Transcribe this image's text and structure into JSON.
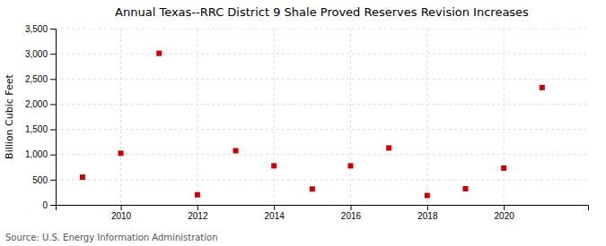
{
  "chart_data": {
    "type": "scatter",
    "title": "Annual Texas--RRC District 9 Shale Proved Reserves Revision Increases",
    "ylabel": "Billion Cubic Feet",
    "source": "Source: U.S. Energy Information Administration",
    "x": [
      2009,
      2010,
      2011,
      2012,
      2013,
      2014,
      2015,
      2016,
      2017,
      2018,
      2019,
      2020,
      2021
    ],
    "values": [
      550,
      1025,
      3010,
      200,
      1075,
      775,
      315,
      775,
      1130,
      185,
      320,
      730,
      2330
    ],
    "xlim": [
      2008.3,
      2022.2
    ],
    "xticks": [
      2010,
      2012,
      2014,
      2016,
      2018,
      2020
    ],
    "ylim": [
      0,
      3500
    ],
    "yticks": [
      0,
      500,
      {
        "value": 1000,
        "label": "1,000"
      },
      {
        "value": 1500,
        "label": "1,500"
      },
      {
        "value": 2000,
        "label": "2,000"
      },
      {
        "value": 2500,
        "label": "2,500"
      },
      {
        "value": 3000,
        "label": "3,000"
      },
      {
        "value": 3500,
        "label": "3,500"
      }
    ],
    "color": "#cc0000",
    "marker": "square",
    "grid": true
  }
}
